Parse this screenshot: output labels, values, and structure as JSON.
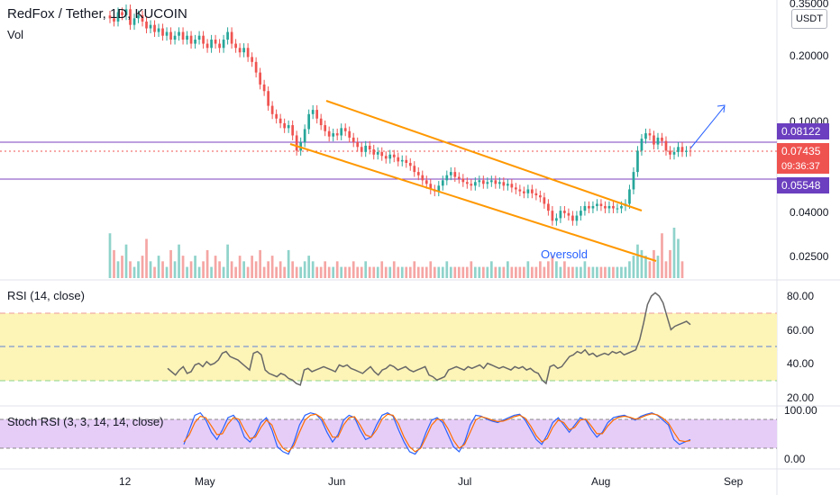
{
  "header": {
    "title": "RedFox / Tether, 1D, KUCOIN",
    "subtitle": "Vol",
    "unit_badge": "USDT"
  },
  "price_tags": {
    "upper_line": "0.08122",
    "last_price": "0.07435",
    "countdown": "09:36:37",
    "lower_line": "0.05548"
  },
  "annotation": "Oversold",
  "colors": {
    "up": "#26a69a",
    "down": "#ef5350",
    "vol_up": "#8fd3cb",
    "vol_down": "#f5a6a4",
    "channel": "#ff9800",
    "hline": "#7b3fbf",
    "arrow": "#2962ff",
    "rsi_line": "#686868",
    "rsi_band": "#fdf4b8",
    "stoch_band": "#e6cdf7",
    "stoch_k": "#2962ff",
    "stoch_d": "#ff6d00",
    "tag_purple": "#6b3fbf",
    "tag_red": "#ef5350"
  },
  "chart_data": [
    {
      "type": "candlestick",
      "title": "RedFox / Tether, 1D, KUCOIN",
      "y_scale": "log",
      "y_ticks": [
        "0.35000",
        "0.20000",
        "0.10000",
        "0.04000",
        "0.02500"
      ],
      "x_ticks": [
        "12",
        "May",
        "Jun",
        "Jul",
        "Aug",
        "Sep"
      ],
      "close_series": [
        0.3,
        0.29,
        0.32,
        0.31,
        0.33,
        0.28,
        0.3,
        0.31,
        0.29,
        0.27,
        0.28,
        0.26,
        0.27,
        0.25,
        0.26,
        0.24,
        0.25,
        0.26,
        0.24,
        0.25,
        0.23,
        0.24,
        0.25,
        0.23,
        0.22,
        0.24,
        0.23,
        0.22,
        0.24,
        0.26,
        0.23,
        0.22,
        0.21,
        0.22,
        0.2,
        0.19,
        0.17,
        0.15,
        0.14,
        0.12,
        0.11,
        0.105,
        0.1,
        0.095,
        0.098,
        0.088,
        0.075,
        0.082,
        0.094,
        0.11,
        0.115,
        0.105,
        0.098,
        0.092,
        0.087,
        0.09,
        0.088,
        0.095,
        0.092,
        0.086,
        0.082,
        0.078,
        0.074,
        0.079,
        0.076,
        0.072,
        0.074,
        0.071,
        0.069,
        0.072,
        0.07,
        0.067,
        0.068,
        0.066,
        0.064,
        0.06,
        0.058,
        0.055,
        0.053,
        0.05,
        0.049,
        0.052,
        0.055,
        0.058,
        0.06,
        0.057,
        0.056,
        0.054,
        0.053,
        0.052,
        0.054,
        0.055,
        0.053,
        0.054,
        0.055,
        0.053,
        0.054,
        0.052,
        0.053,
        0.051,
        0.05,
        0.049,
        0.048,
        0.05,
        0.048,
        0.047,
        0.046,
        0.043,
        0.04,
        0.036,
        0.037,
        0.04,
        0.039,
        0.038,
        0.036,
        0.038,
        0.04,
        0.042,
        0.041,
        0.042,
        0.043,
        0.042,
        0.041,
        0.042,
        0.041,
        0.041,
        0.042,
        0.043,
        0.05,
        0.06,
        0.075,
        0.085,
        0.09,
        0.088,
        0.08,
        0.086,
        0.083,
        0.075,
        0.072,
        0.074,
        0.078,
        0.074,
        0.075,
        0.0744
      ],
      "horizontal_lines": [
        0.08122,
        0.05548
      ],
      "last_price": 0.07435
    },
    {
      "type": "bar",
      "title": "Vol",
      "values": [
        8,
        5,
        3,
        4,
        6,
        3,
        2,
        3,
        4,
        7,
        3,
        2,
        4,
        3,
        2,
        5,
        3,
        6,
        4,
        2,
        3,
        4,
        2,
        3,
        5,
        2,
        4,
        3,
        2,
        6,
        3,
        2,
        4,
        3,
        2,
        4,
        3,
        5,
        2,
        3,
        4,
        2,
        3,
        2,
        5,
        3,
        2,
        2,
        3,
        4,
        3,
        2,
        2,
        3,
        2,
        2,
        3,
        2,
        2,
        2,
        3,
        2,
        2,
        3,
        2,
        2,
        2,
        3,
        2,
        2,
        3,
        2,
        2,
        2,
        2,
        3,
        2,
        2,
        2,
        3,
        2,
        2,
        2,
        3,
        2,
        2,
        2,
        2,
        2,
        3,
        2,
        2,
        2,
        2,
        3,
        2,
        2,
        2,
        3,
        2,
        2,
        2,
        2,
        3,
        2,
        2,
        3,
        2,
        3,
        4,
        3,
        2,
        3,
        2,
        2,
        2,
        2,
        3,
        2,
        2,
        2,
        2,
        2,
        2,
        2,
        2,
        2,
        2,
        3,
        4,
        6,
        5,
        4,
        3,
        5,
        4,
        8,
        3,
        5,
        9,
        7,
        3
      ]
    },
    {
      "type": "line",
      "title": "RSI (14, close)",
      "y_ticks": [
        "80.00",
        "60.00",
        "40.00",
        "20.00"
      ],
      "band": [
        30,
        70
      ],
      "midline": 50,
      "values": [
        37,
        35,
        33,
        36,
        38,
        34,
        35,
        39,
        40,
        38,
        41,
        39,
        40,
        42,
        46,
        47,
        44,
        43,
        42,
        40,
        38,
        36,
        46,
        47,
        45,
        36,
        34,
        33,
        32,
        34,
        33,
        31,
        30,
        28,
        27,
        36,
        37,
        35,
        36,
        37,
        38,
        37,
        36,
        35,
        39,
        38,
        39,
        37,
        36,
        35,
        34,
        36,
        38,
        35,
        33,
        36,
        37,
        39,
        38,
        36,
        37,
        38,
        36,
        35,
        36,
        37,
        38,
        33,
        32,
        30,
        31,
        32,
        36,
        37,
        38,
        37,
        36,
        38,
        37,
        38,
        39,
        37,
        40,
        39,
        38,
        37,
        38,
        37,
        36,
        38,
        37,
        38,
        36,
        37,
        35,
        34,
        30,
        28,
        38,
        39,
        37,
        38,
        41,
        44,
        45,
        47,
        46,
        48,
        45,
        46,
        44,
        45,
        46,
        45,
        47,
        46,
        47,
        45,
        46,
        47,
        48,
        54,
        64,
        75,
        80,
        82,
        80,
        76,
        68,
        60,
        62,
        63,
        64,
        65,
        63
      ]
    },
    {
      "type": "line",
      "title": "Stoch RSI (3, 3, 14, 14, close)",
      "y_ticks": [
        "100.00",
        "0.00"
      ],
      "band": [
        20,
        80
      ],
      "series": [
        {
          "name": "K",
          "values": [
            30,
            60,
            90,
            95,
            80,
            55,
            40,
            60,
            85,
            90,
            75,
            45,
            35,
            50,
            75,
            85,
            60,
            25,
            15,
            10,
            35,
            70,
            90,
            95,
            92,
            80,
            55,
            35,
            50,
            80,
            90,
            85,
            60,
            40,
            45,
            70,
            90,
            95,
            88,
            60,
            35,
            15,
            10,
            25,
            55,
            80,
            85,
            75,
            50,
            25,
            15,
            35,
            70,
            90,
            88,
            82,
            78,
            75,
            80,
            85,
            90,
            92,
            80,
            60,
            40,
            30,
            50,
            75,
            85,
            70,
            55,
            70,
            85,
            80,
            60,
            45,
            55,
            75,
            85,
            88,
            90,
            85,
            80,
            88,
            92,
            95,
            90,
            80,
            70,
            40,
            30,
            35,
            40
          ]
        },
        {
          "name": "D",
          "values": [
            35,
            50,
            75,
            88,
            85,
            68,
            50,
            52,
            72,
            85,
            82,
            60,
            42,
            45,
            65,
            80,
            70,
            40,
            22,
            15,
            28,
            55,
            80,
            90,
            92,
            85,
            65,
            45,
            45,
            70,
            85,
            87,
            70,
            50,
            45,
            60,
            82,
            92,
            90,
            72,
            45,
            25,
            15,
            22,
            45,
            70,
            82,
            80,
            62,
            38,
            22,
            30,
            55,
            80,
            87,
            84,
            80,
            77,
            78,
            82,
            87,
            90,
            84,
            68,
            48,
            35,
            42,
            65,
            80,
            75,
            60,
            65,
            80,
            82,
            68,
            52,
            52,
            68,
            80,
            86,
            88,
            86,
            82,
            85,
            90,
            93,
            91,
            84,
            74,
            55,
            38,
            36,
            38
          ]
        }
      ]
    }
  ]
}
